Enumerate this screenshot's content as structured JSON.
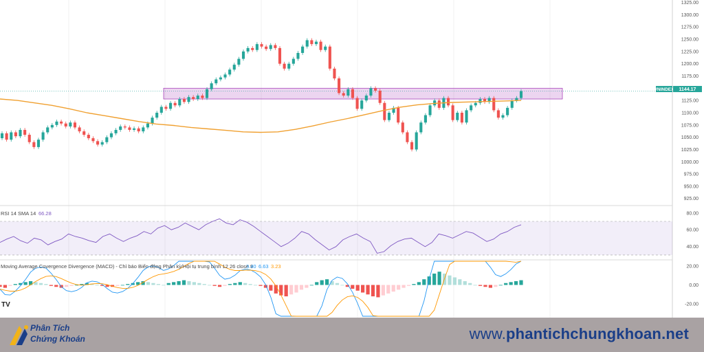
{
  "chart_data": {
    "type": "candlestick",
    "symbol": "VNINDEX",
    "last_price": "1144.17",
    "price_axis": {
      "ticks": [
        "1325.00",
        "1300.00",
        "1275.00",
        "1250.00",
        "1225.00",
        "1200.00",
        "1175.00",
        "1150.00",
        "1125.00",
        "1100.00",
        "1075.00",
        "1050.00",
        "1025.00",
        "1000.00",
        "975.00",
        "950.00",
        "925.00"
      ],
      "ylim": [
        912,
        1330
      ]
    },
    "resistance_zone": [
      1128,
      1150
    ],
    "candles": [
      [
        1048,
        1058
      ],
      [
        1058,
        1045
      ],
      [
        1045,
        1060
      ],
      [
        1060,
        1052
      ],
      [
        1052,
        1065
      ],
      [
        1065,
        1055
      ],
      [
        1055,
        1040
      ],
      [
        1040,
        1030
      ],
      [
        1030,
        1045
      ],
      [
        1045,
        1060
      ],
      [
        1060,
        1070
      ],
      [
        1070,
        1075
      ],
      [
        1075,
        1082
      ],
      [
        1082,
        1078
      ],
      [
        1078,
        1072
      ],
      [
        1072,
        1080
      ],
      [
        1080,
        1070
      ],
      [
        1070,
        1062
      ],
      [
        1062,
        1055
      ],
      [
        1055,
        1048
      ],
      [
        1048,
        1042
      ],
      [
        1042,
        1035
      ],
      [
        1035,
        1040
      ],
      [
        1040,
        1050
      ],
      [
        1050,
        1058
      ],
      [
        1058,
        1065
      ],
      [
        1065,
        1072
      ],
      [
        1072,
        1070
      ],
      [
        1070,
        1065
      ],
      [
        1065,
        1068
      ],
      [
        1068,
        1062
      ],
      [
        1062,
        1070
      ],
      [
        1070,
        1078
      ],
      [
        1078,
        1090
      ],
      [
        1090,
        1100
      ],
      [
        1100,
        1112
      ],
      [
        1112,
        1108
      ],
      [
        1108,
        1120
      ],
      [
        1120,
        1115
      ],
      [
        1115,
        1128
      ],
      [
        1128,
        1122
      ],
      [
        1122,
        1132
      ],
      [
        1132,
        1128
      ],
      [
        1128,
        1135
      ],
      [
        1135,
        1130
      ],
      [
        1130,
        1148
      ],
      [
        1148,
        1160
      ],
      [
        1160,
        1168
      ],
      [
        1168,
        1172
      ],
      [
        1172,
        1178
      ],
      [
        1178,
        1188
      ],
      [
        1188,
        1198
      ],
      [
        1198,
        1210
      ],
      [
        1210,
        1225
      ],
      [
        1225,
        1232
      ],
      [
        1232,
        1228
      ],
      [
        1228,
        1240
      ],
      [
        1240,
        1235
      ],
      [
        1235,
        1230
      ],
      [
        1230,
        1238
      ],
      [
        1238,
        1232
      ],
      [
        1232,
        1200
      ],
      [
        1200,
        1190
      ],
      [
        1190,
        1200
      ],
      [
        1200,
        1210
      ],
      [
        1210,
        1222
      ],
      [
        1222,
        1235
      ],
      [
        1235,
        1248
      ],
      [
        1248,
        1240
      ],
      [
        1240,
        1245
      ],
      [
        1245,
        1228
      ],
      [
        1228,
        1235
      ],
      [
        1235,
        1190
      ],
      [
        1190,
        1170
      ],
      [
        1170,
        1140
      ],
      [
        1140,
        1135
      ],
      [
        1135,
        1148
      ],
      [
        1148,
        1130
      ],
      [
        1130,
        1108
      ],
      [
        1108,
        1125
      ],
      [
        1125,
        1135
      ],
      [
        1135,
        1150
      ],
      [
        1150,
        1145
      ],
      [
        1145,
        1120
      ],
      [
        1120,
        1085
      ],
      [
        1085,
        1100
      ],
      [
        1100,
        1110
      ],
      [
        1110,
        1080
      ],
      [
        1080,
        1060
      ],
      [
        1060,
        1040
      ],
      [
        1040,
        1025
      ],
      [
        1025,
        1060
      ],
      [
        1060,
        1080
      ],
      [
        1080,
        1095
      ],
      [
        1095,
        1115
      ],
      [
        1115,
        1125
      ],
      [
        1125,
        1110
      ],
      [
        1110,
        1130
      ],
      [
        1130,
        1115
      ],
      [
        1115,
        1085
      ],
      [
        1085,
        1100
      ],
      [
        1100,
        1080
      ],
      [
        1080,
        1105
      ],
      [
        1105,
        1115
      ],
      [
        1115,
        1120
      ],
      [
        1120,
        1128
      ],
      [
        1128,
        1122
      ],
      [
        1122,
        1130
      ],
      [
        1130,
        1105
      ],
      [
        1105,
        1090
      ],
      [
        1090,
        1095
      ],
      [
        1095,
        1110
      ],
      [
        1110,
        1125
      ],
      [
        1125,
        1130
      ],
      [
        1130,
        1144
      ]
    ],
    "ma_line": [
      1128,
      1125,
      1120,
      1115,
      1108,
      1100,
      1094,
      1088,
      1082,
      1077,
      1074,
      1070,
      1067,
      1064,
      1061,
      1060,
      1061,
      1066,
      1073,
      1081,
      1088,
      1096,
      1104,
      1111,
      1116,
      1119,
      1121,
      1122,
      1123,
      1124,
      1125
    ],
    "rsi": {
      "label": "RSI 14 SMA 14",
      "value": "66.28",
      "ticks": [
        "80.00",
        "60.00",
        "40.00"
      ],
      "ylim": [
        25,
        88
      ],
      "band": [
        30,
        70
      ],
      "values": [
        45,
        49,
        52,
        47,
        44,
        50,
        48,
        42,
        46,
        49,
        55,
        52,
        50,
        47,
        45,
        52,
        55,
        50,
        46,
        50,
        53,
        58,
        55,
        62,
        65,
        60,
        63,
        68,
        64,
        60,
        66,
        70,
        73,
        68,
        66,
        72,
        69,
        64,
        58,
        52,
        46,
        40,
        44,
        50,
        58,
        55,
        48,
        42,
        36,
        40,
        48,
        52,
        55,
        50,
        46,
        32,
        34,
        41,
        46,
        49,
        50,
        45,
        40,
        45,
        55,
        53,
        50,
        54,
        58,
        56,
        51,
        46,
        49,
        55,
        58,
        63,
        66
      ]
    },
    "macd": {
      "label": "Moving Average Covergence Divergence (MACD) - Chỉ báo Biến động Phân kỳ/Hội tụ trung bình 12 26 close 9",
      "values_text": [
        "3.40",
        "6.63",
        "3.23"
      ],
      "ticks": [
        "20.00",
        "0.00",
        "-20.00"
      ],
      "ylim": [
        -33,
        25
      ],
      "hist": [
        -2,
        -3,
        -1,
        1,
        2,
        3,
        4,
        3,
        2,
        1,
        -1,
        -2,
        -3,
        -2,
        -1,
        0,
        1,
        2,
        1,
        0,
        -1,
        -2,
        -2,
        -1,
        0,
        1,
        2,
        3,
        4,
        3,
        2,
        1,
        0,
        2,
        3,
        4,
        5,
        4,
        3,
        2,
        1,
        0,
        -1,
        -2,
        -1,
        1,
        2,
        3,
        2,
        1,
        0,
        -1,
        -3,
        -6,
        -9,
        -11,
        -12,
        -10,
        -8,
        -5,
        -3,
        0,
        3,
        5,
        6,
        4,
        2,
        0,
        -2,
        -4,
        -6,
        -8,
        -10,
        -12,
        -13,
        -11,
        -9,
        -7,
        -5,
        -3,
        -1,
        1,
        3,
        6,
        9,
        12,
        14,
        12,
        10,
        8,
        6,
        4,
        2,
        0,
        -1,
        -2,
        -3,
        -2,
        0,
        2,
        3,
        4,
        5
      ]
    }
  },
  "footer": {
    "logo_line1": "Phân Tích",
    "logo_line2": "Chứng Khoán",
    "site_prefix": "www.",
    "site_main": "phantichchungkhoan",
    "site_suffix": ".net"
  }
}
